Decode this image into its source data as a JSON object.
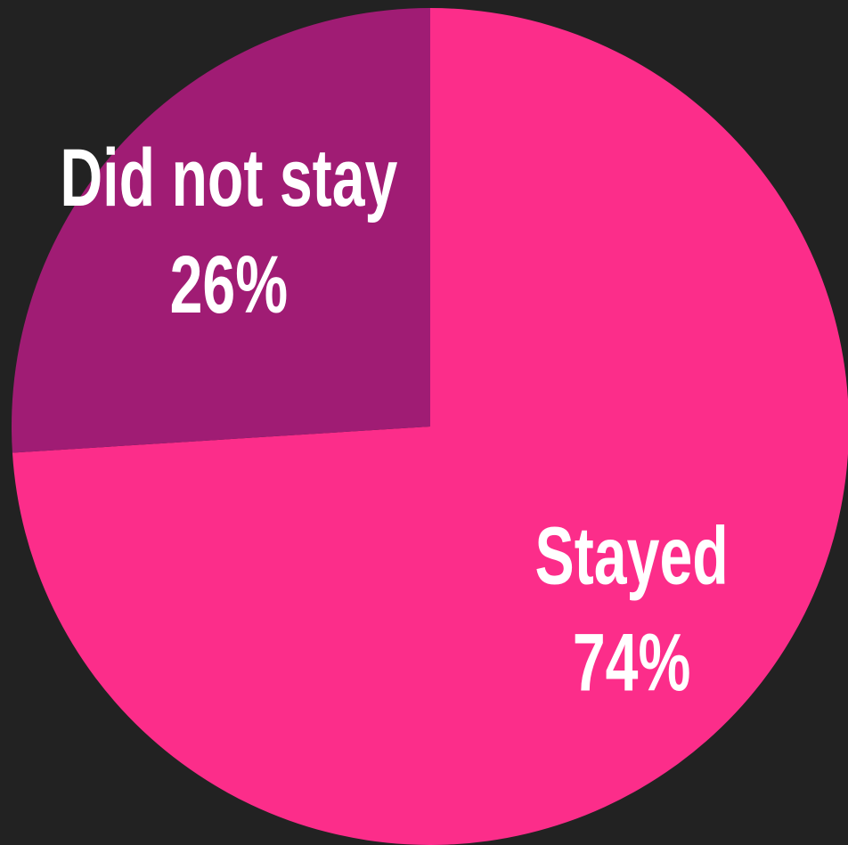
{
  "chart_data": {
    "type": "pie",
    "categories": [
      "Stayed",
      "Did not stay"
    ],
    "values": [
      74,
      26
    ],
    "value_labels": [
      "74%",
      "26%"
    ],
    "colors": [
      "#fc2d8a",
      "#a01c74"
    ]
  }
}
